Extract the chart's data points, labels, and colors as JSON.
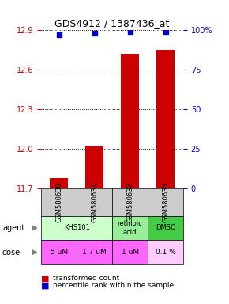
{
  "title": "GDS4912 / 1387436_at",
  "samples": [
    "GSM580630",
    "GSM580631",
    "GSM580632",
    "GSM580633"
  ],
  "bar_values": [
    11.78,
    12.02,
    12.72,
    12.75
  ],
  "percentile_values": [
    97,
    98,
    99,
    99
  ],
  "ylim_left": [
    11.7,
    12.9
  ],
  "ylim_right": [
    0,
    100
  ],
  "yticks_left": [
    11.7,
    12.0,
    12.3,
    12.6,
    12.9
  ],
  "yticks_right": [
    0,
    25,
    50,
    75,
    100
  ],
  "ytick_labels_right": [
    "0",
    "25",
    "50",
    "75",
    "100%"
  ],
  "bar_color": "#cc0000",
  "dot_color": "#0000cc",
  "grid_color": "#000000",
  "agent_labels": [
    "KHS101",
    "KHS101",
    "retinoic\nacid",
    "DMSO"
  ],
  "agent_spans": [
    [
      0,
      1
    ],
    [
      2
    ],
    [
      3
    ]
  ],
  "agent_texts": [
    "KHS101",
    "retinoic\nacid",
    "DMSO"
  ],
  "agent_colors": [
    "#ccffcc",
    "#99ee99",
    "#33cc33"
  ],
  "dose_labels": [
    "5 uM",
    "1.7 uM",
    "1 uM",
    "0.1 %"
  ],
  "dose_color": "#ff66ff",
  "sample_bg_color": "#cccccc",
  "legend_red_label": "transformed count",
  "legend_blue_label": "percentile rank within the sample"
}
